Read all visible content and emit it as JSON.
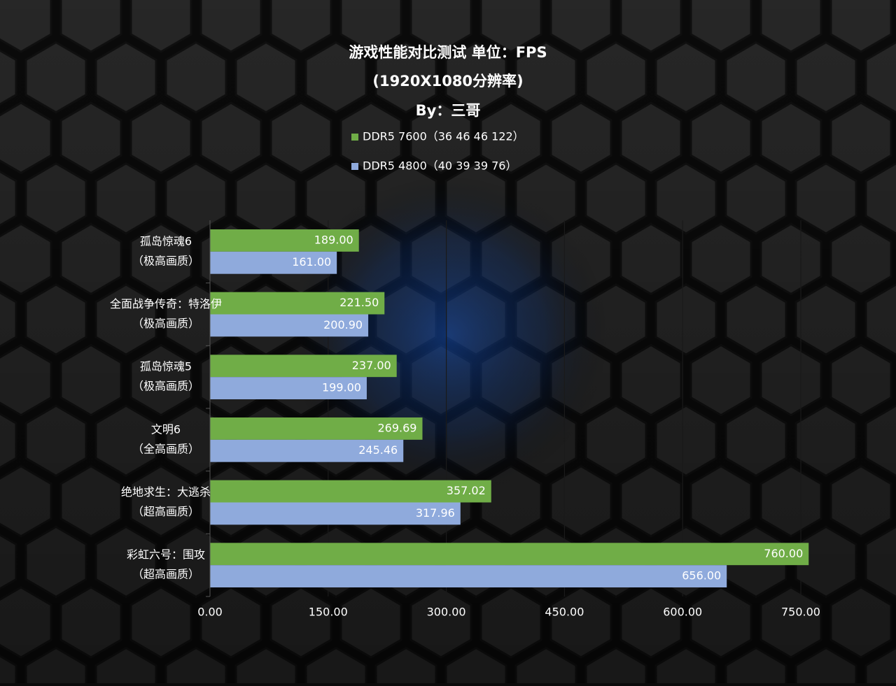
{
  "chart_data": {
    "type": "bar",
    "orientation": "horizontal",
    "title": [
      "游戏性能对比测试 单位：FPS",
      "(1920X1080分辨率)",
      "By：三哥"
    ],
    "categories": [
      [
        "孤岛惊魂6",
        "（极高画质）"
      ],
      [
        "全面战争传奇：特洛伊",
        "（极高画质）"
      ],
      [
        "孤岛惊魂5",
        "（极高画质）"
      ],
      [
        "文明6",
        "（全高画质）"
      ],
      [
        "绝地求生：大逃杀",
        "（超高画质）"
      ],
      [
        "彩虹六号：围攻",
        "（超高画质）"
      ]
    ],
    "series": [
      {
        "name": "DDR5 7600（36 46 46 122）",
        "color": "#70ad47",
        "values": [
          189,
          221.5,
          237,
          269.69,
          357.02,
          760
        ],
        "value_labels": [
          "189.00",
          "221.50",
          "237.00",
          "269.69",
          "357.02",
          "760.00"
        ]
      },
      {
        "name": "DDR5 4800（40 39 39 76）",
        "color": "#8faadc",
        "values": [
          161,
          200.9,
          199,
          245.46,
          317.96,
          656
        ],
        "value_labels": [
          "161.00",
          "200.90",
          "199.00",
          "245.46",
          "317.96",
          "656.00"
        ]
      }
    ],
    "xlim": [
      0,
      750
    ],
    "xticks": [
      {
        "value": 0,
        "label": "0.00"
      },
      {
        "value": 150,
        "label": "150.00"
      },
      {
        "value": 300,
        "label": "300.00"
      },
      {
        "value": 450,
        "label": "450.00"
      },
      {
        "value": 600,
        "label": "600.00"
      },
      {
        "value": 750,
        "label": "750.00"
      }
    ],
    "grid": true,
    "legend": "top"
  }
}
